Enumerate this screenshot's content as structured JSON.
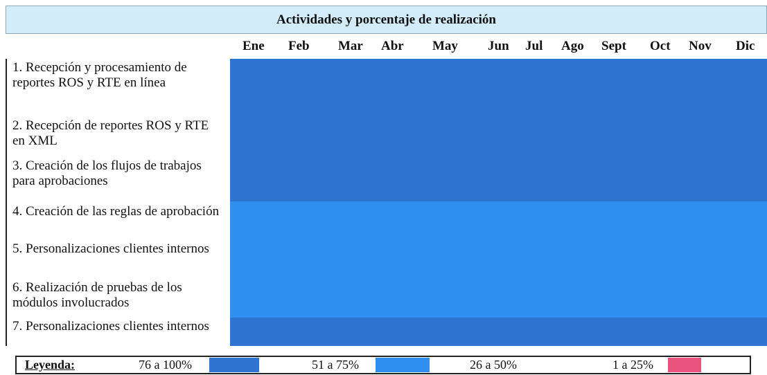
{
  "title": "Actividades y porcentaje de realización",
  "months": [
    "Ene",
    "Feb",
    "Mar",
    "Abr",
    "May",
    "Jun",
    "Jul",
    "Ago",
    "Sept",
    "Oct",
    "Nov",
    "Dic"
  ],
  "activities": [
    {
      "label": "1. Recepción y procesamiento de reportes ROS y RTE en línea",
      "level": "76 a 100%"
    },
    {
      "label": "2. Recepción de reportes ROS y RTE en XML",
      "level": "76 a 100%"
    },
    {
      "label": "3. Creación de los flujos de trabajos para aprobaciones",
      "level": "76 a 100%"
    },
    {
      "label": "4. Creación de las reglas de aprobación",
      "level": "51 a 75%"
    },
    {
      "label": "5. Personalizaciones clientes internos",
      "level": "51 a 75%"
    },
    {
      "label": "6. Realización de pruebas de los módulos involucrados",
      "level": "51 a 75%"
    },
    {
      "label": "7. Personalizaciones clientes internos",
      "level": "76 a 100%"
    }
  ],
  "legend": {
    "title": "Leyenda:",
    "items": [
      {
        "label": "76 a 100%",
        "color": "#2f74d0"
      },
      {
        "label": "51 a 75%",
        "color": "#2f8ff0"
      },
      {
        "label": "26 a 50%",
        "color": "#ffffff"
      },
      {
        "label": "1 a 25%",
        "color": "#e8547e"
      }
    ]
  },
  "colors": {
    "title_bg": "#d3ecf9",
    "high": "#2f74d0",
    "mid": "#2f8ff0"
  }
}
